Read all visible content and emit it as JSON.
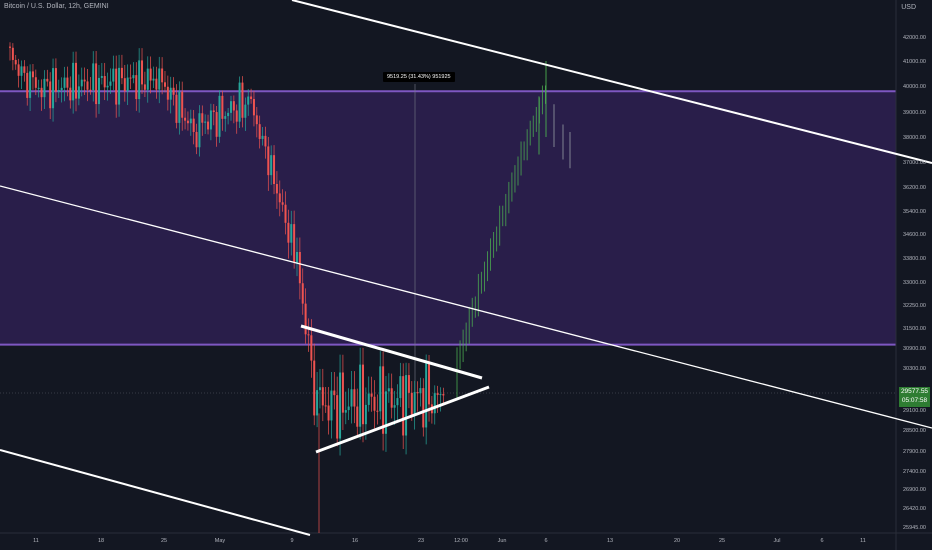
{
  "header": {
    "title": "Bitcoin / U.S. Dollar, 12h, GEMINI",
    "currency": "USD"
  },
  "measure_label": "9519.25 (31.43%) 951925",
  "last_price": {
    "value": "29577.55",
    "countdown": "05:07:58"
  },
  "colors": {
    "bg": "#131722",
    "up": "#26a69a",
    "down": "#ef5350",
    "zone": "#2a1f4d",
    "zone_line": "#7e57c2",
    "projection": "#4caf50"
  },
  "chart_data": {
    "type": "candlestick",
    "title": "Bitcoin / U.S. Dollar, 12h, GEMINI",
    "ylim": [
      25700,
      43600
    ],
    "y_ticks": [
      "42000.00",
      "41000.00",
      "40000.00",
      "39000.00",
      "38000.00",
      "37000.00",
      "36200.00",
      "35400.00",
      "34600.00",
      "33800.00",
      "33000.00",
      "32250.00",
      "31500.00",
      "30900.00",
      "30300.00",
      "29700.00",
      "29100.00",
      "28500.00",
      "27900.00",
      "27400.00",
      "26900.00",
      "26420.00",
      "25945.00"
    ],
    "x_ticks": [
      "11",
      "18",
      "25",
      "May",
      "9",
      "16",
      "23",
      "12:00",
      "Jun",
      "6",
      "13",
      "20",
      "25",
      "Jul",
      "6",
      "11"
    ],
    "resistance_zone": {
      "low": 31000,
      "high": 39800
    },
    "ohlc": [],
    "projection": []
  }
}
